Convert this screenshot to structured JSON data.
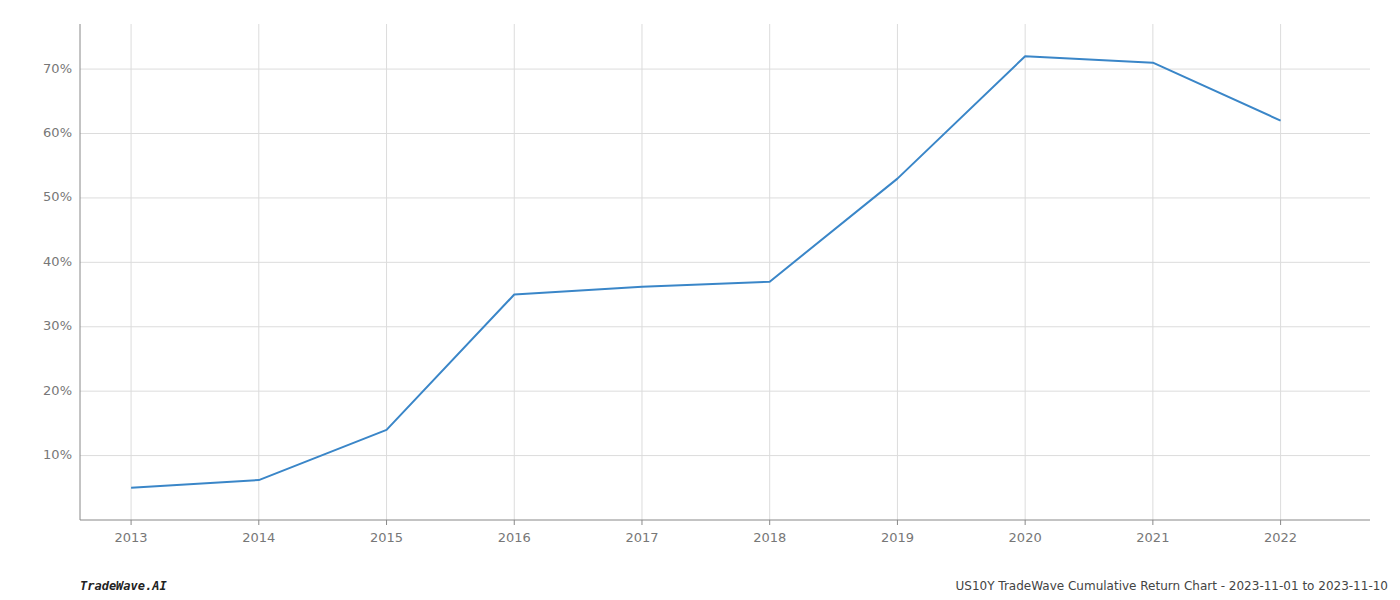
{
  "chart_data": {
    "type": "line",
    "x": [
      2013,
      2014,
      2015,
      2016,
      2017,
      2018,
      2019,
      2020,
      2021,
      2022
    ],
    "values": [
      5.0,
      6.2,
      14.0,
      35.0,
      36.2,
      37.0,
      53.0,
      72.0,
      71.0,
      62.0
    ],
    "color": "#3a86c8",
    "xlim": [
      2012.6,
      2022.7
    ],
    "xticks": [
      2013,
      2014,
      2015,
      2016,
      2017,
      2018,
      2019,
      2020,
      2021,
      2022
    ],
    "ylim": [
      0,
      77
    ],
    "yticks": [
      {
        "value": 10,
        "label": "10%"
      },
      {
        "value": 20,
        "label": "20%"
      },
      {
        "value": 30,
        "label": "30%"
      },
      {
        "value": 40,
        "label": "40%"
      },
      {
        "value": 50,
        "label": "50%"
      },
      {
        "value": 60,
        "label": "60%"
      },
      {
        "value": 70,
        "label": "70%"
      }
    ],
    "grid": true,
    "annotations": [
      "TradeWave.AI",
      "US10Y TradeWave Cumulative Return Chart - 2023-11-01 to 2023-11-10"
    ]
  }
}
